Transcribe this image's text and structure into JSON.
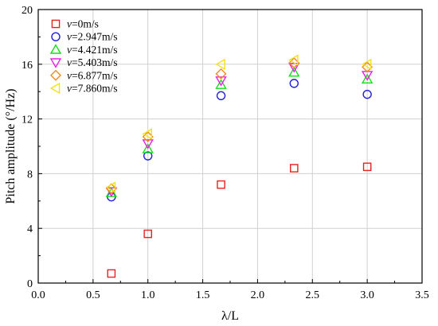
{
  "chart_data": {
    "type": "scatter",
    "title": "",
    "xlabel": "λ/L",
    "ylabel": "Pitch amplitude (°/Hz)",
    "xlim": [
      0.0,
      3.5
    ],
    "ylim": [
      0,
      20
    ],
    "xticks": [
      "0.0",
      "0.5",
      "1.0",
      "1.5",
      "2.0",
      "2.5",
      "3.0",
      "3.5"
    ],
    "yticks": [
      "0",
      "4",
      "8",
      "12",
      "16",
      "20"
    ],
    "grid": true,
    "legend_position": "top-left",
    "series": [
      {
        "name": "v=0m/s",
        "label_var": "v",
        "label_rest": "=0m/s",
        "marker": "square",
        "color": "#e8201f",
        "x": [
          0.667,
          1.0,
          1.667,
          2.333,
          3.0
        ],
        "y": [
          0.7,
          3.6,
          7.2,
          8.4,
          8.5
        ]
      },
      {
        "name": "v=2.947m/s",
        "label_var": "v",
        "label_rest": "=2.947m/s",
        "marker": "circle",
        "color": "#1f1fd6",
        "x": [
          0.667,
          1.0,
          1.667,
          2.333,
          3.0
        ],
        "y": [
          6.3,
          9.3,
          13.7,
          14.6,
          13.8
        ]
      },
      {
        "name": "v=4.421m/s",
        "label_var": "v",
        "label_rest": "=4.421m/s",
        "marker": "triangle-up",
        "color": "#12e012",
        "x": [
          0.667,
          1.0,
          1.667,
          2.333,
          3.0
        ],
        "y": [
          6.6,
          9.8,
          14.5,
          15.4,
          14.9
        ]
      },
      {
        "name": "v=5.403m/s",
        "label_var": "v",
        "label_rest": "=5.403m/s",
        "marker": "triangle-down",
        "color": "#e81ee8",
        "x": [
          0.667,
          1.0,
          1.667,
          2.333,
          3.0
        ],
        "y": [
          6.7,
          10.2,
          14.8,
          15.8,
          15.2
        ]
      },
      {
        "name": "v=6.877m/s",
        "label_var": "v",
        "label_rest": "=6.877m/s",
        "marker": "diamond",
        "color": "#f08a1e",
        "x": [
          0.667,
          1.0,
          1.667,
          2.333,
          3.0
        ],
        "y": [
          6.9,
          10.7,
          15.3,
          16.1,
          15.8
        ]
      },
      {
        "name": "v=7.860m/s",
        "label_var": "v",
        "label_rest": "=7.860m/s",
        "marker": "triangle-left",
        "color": "#f2e21a",
        "x": [
          0.667,
          1.0,
          1.667,
          2.333,
          3.0
        ],
        "y": [
          7.0,
          10.9,
          16.0,
          16.3,
          16.0
        ]
      }
    ]
  }
}
